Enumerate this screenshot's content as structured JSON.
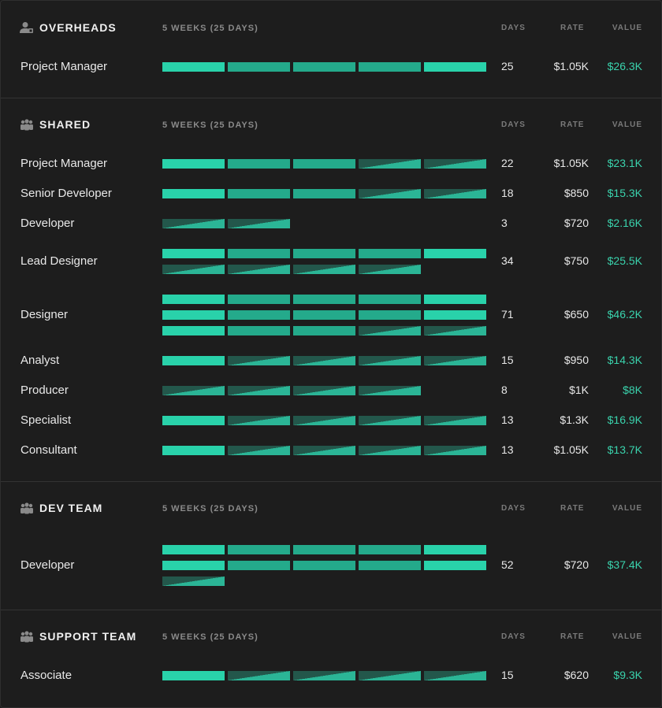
{
  "colors": {
    "accent": "#29d2aa",
    "value_text": "#3ad3ad",
    "background": "#1d1d1d"
  },
  "sections": [
    {
      "title": "OVERHEADS",
      "icon": "person-icon",
      "weeks": "5 WEEKS (25 DAYS)",
      "col_days": "DAYS",
      "col_rate": "RATE",
      "col_value": "VALUE",
      "rows": [
        {
          "name": "Project Manager",
          "days": "25",
          "rate": "$1.05K",
          "value": "$26.3K",
          "segments": [
            [
              "a",
              "b",
              "b",
              "b",
              "a"
            ]
          ]
        }
      ]
    },
    {
      "title": "SHARED",
      "icon": "team-icon",
      "weeks": "5 WEEKS (25 DAYS)",
      "col_days": "DAYS",
      "col_rate": "RATE",
      "col_value": "VALUE",
      "rows": [
        {
          "name": "Project Manager",
          "days": "22",
          "rate": "$1.05K",
          "value": "$23.1K",
          "segments": [
            [
              "a",
              "b",
              "b",
              "p",
              "p"
            ]
          ]
        },
        {
          "name": "Senior Developer",
          "days": "18",
          "rate": "$850",
          "value": "$15.3K",
          "segments": [
            [
              "a",
              "b",
              "b",
              "p",
              "p"
            ]
          ]
        },
        {
          "name": "Developer",
          "days": "3",
          "rate": "$720",
          "value": "$2.16K",
          "segments": [
            [
              "p",
              "p"
            ]
          ]
        },
        {
          "name": "Lead Designer",
          "days": "34",
          "rate": "$750",
          "value": "$25.5K",
          "segments": [
            [
              "a",
              "b",
              "b",
              "b",
              "a"
            ],
            [
              "p",
              "p",
              "p",
              "p"
            ]
          ]
        },
        {
          "name": "Designer",
          "days": "71",
          "rate": "$650",
          "value": "$46.2K",
          "segments": [
            [
              "a",
              "b",
              "b",
              "b",
              "a"
            ],
            [
              "a",
              "b",
              "b",
              "b",
              "a"
            ],
            [
              "a",
              "b",
              "b",
              "p",
              "p"
            ]
          ]
        },
        {
          "name": "Analyst",
          "days": "15",
          "rate": "$950",
          "value": "$14.3K",
          "segments": [
            [
              "a",
              "p",
              "p",
              "p",
              "p"
            ]
          ]
        },
        {
          "name": "Producer",
          "days": "8",
          "rate": "$1K",
          "value": "$8K",
          "segments": [
            [
              "p",
              "p",
              "p",
              "p"
            ]
          ]
        },
        {
          "name": "Specialist",
          "days": "13",
          "rate": "$1.3K",
          "value": "$16.9K",
          "segments": [
            [
              "a",
              "p",
              "p",
              "p",
              "p"
            ]
          ]
        },
        {
          "name": "Consultant",
          "days": "13",
          "rate": "$1.05K",
          "value": "$13.7K",
          "segments": [
            [
              "a",
              "p",
              "p",
              "p",
              "p"
            ]
          ]
        }
      ]
    },
    {
      "title": "DEV TEAM",
      "icon": "team-icon",
      "weeks": "5 WEEKS (25 DAYS)",
      "col_days": "DAYS",
      "col_rate": "RATE",
      "col_value": "VALUE",
      "rows": [
        {
          "name": "Developer",
          "days": "52",
          "rate": "$720",
          "value": "$37.4K",
          "segments": [
            [
              "a",
              "b",
              "b",
              "b",
              "a"
            ],
            [
              "a",
              "b",
              "b",
              "b",
              "a"
            ],
            [
              "p"
            ]
          ]
        }
      ]
    },
    {
      "title": "SUPPORT TEAM",
      "icon": "team-icon",
      "weeks": "5 WEEKS (25 DAYS)",
      "col_days": "DAYS",
      "col_rate": "RATE",
      "col_value": "VALUE",
      "rows": [
        {
          "name": "Associate",
          "days": "15",
          "rate": "$620",
          "value": "$9.3K",
          "segments": [
            [
              "a",
              "p",
              "p",
              "p",
              "p"
            ]
          ]
        }
      ]
    }
  ]
}
